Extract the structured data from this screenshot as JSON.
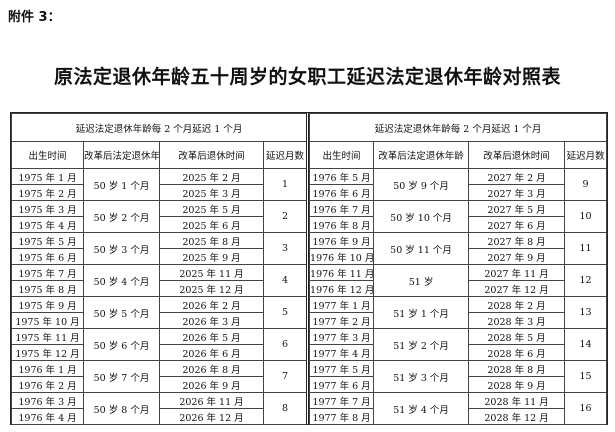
{
  "header": {
    "attachment": "附件 3：",
    "title": "原法定退休年龄五十周岁的女职工延迟法定退休年龄对照表"
  },
  "tables": [
    {
      "caption": "延迟法定退休年龄每 2 个月延迟 1 个月",
      "columns": [
        "出生时间",
        "改革后法定退休年龄",
        "改革后退休时间",
        "延迟月数"
      ],
      "groups": [
        {
          "birth": [
            "1975 年 1 月",
            "1975 年 2 月"
          ],
          "age": "50 岁 1 个月",
          "retire": [
            "2025 年 2 月",
            "2025 年 3 月"
          ],
          "delay": "1"
        },
        {
          "birth": [
            "1975 年 3 月",
            "1975 年 4 月"
          ],
          "age": "50 岁 2 个月",
          "retire": [
            "2025 年 5 月",
            "2025 年 6 月"
          ],
          "delay": "2"
        },
        {
          "birth": [
            "1975 年 5 月",
            "1975 年 6 月"
          ],
          "age": "50 岁 3 个月",
          "retire": [
            "2025 年 8 月",
            "2025 年 9 月"
          ],
          "delay": "3"
        },
        {
          "birth": [
            "1975 年 7 月",
            "1975 年 8 月"
          ],
          "age": "50 岁 4 个月",
          "retire": [
            "2025 年 11 月",
            "2025 年 12 月"
          ],
          "delay": "4"
        },
        {
          "birth": [
            "1975 年 9 月",
            "1975 年 10 月"
          ],
          "age": "50 岁 5 个月",
          "retire": [
            "2026 年 2 月",
            "2026 年 3 月"
          ],
          "delay": "5"
        },
        {
          "birth": [
            "1975 年 11 月",
            "1975 年 12 月"
          ],
          "age": "50 岁 6 个月",
          "retire": [
            "2026 年 5 月",
            "2026 年 6 月"
          ],
          "delay": "6"
        },
        {
          "birth": [
            "1976 年 1 月",
            "1976 年 2 月"
          ],
          "age": "50 岁 7 个月",
          "retire": [
            "2026 年 8 月",
            "2026 年 9 月"
          ],
          "delay": "7"
        },
        {
          "birth": [
            "1976 年 3 月",
            "1976 年 4 月"
          ],
          "age": "50 岁 8 个月",
          "retire": [
            "2026 年 11 月",
            "2026 年 12 月"
          ],
          "delay": "8"
        }
      ]
    },
    {
      "caption": "延迟法定退休年龄每 2 个月延迟 1 个月",
      "columns": [
        "出生时间",
        "改革后法定退休年龄",
        "改革后退休时间",
        "延迟月数"
      ],
      "groups": [
        {
          "birth": [
            "1976 年 5 月",
            "1976 年 6 月"
          ],
          "age": "50 岁 9 个月",
          "retire": [
            "2027 年 2 月",
            "2027 年 3 月"
          ],
          "delay": "9"
        },
        {
          "birth": [
            "1976 年 7 月",
            "1976 年 8 月"
          ],
          "age": "50 岁 10 个月",
          "retire": [
            "2027 年 5 月",
            "2027 年 6 月"
          ],
          "delay": "10"
        },
        {
          "birth": [
            "1976 年 9 月",
            "1976 年 10 月"
          ],
          "age": "50 岁 11 个月",
          "retire": [
            "2027 年 8 月",
            "2027 年 9 月"
          ],
          "delay": "11"
        },
        {
          "birth": [
            "1976 年 11 月",
            "1976 年 12 月"
          ],
          "age": "51 岁",
          "retire": [
            "2027 年 11 月",
            "2027 年 12 月"
          ],
          "delay": "12"
        },
        {
          "birth": [
            "1977 年 1 月",
            "1977 年 2 月"
          ],
          "age": "51 岁 1 个月",
          "retire": [
            "2028 年 2 月",
            "2028 年 3 月"
          ],
          "delay": "13"
        },
        {
          "birth": [
            "1977 年 3 月",
            "1977 年 4 月"
          ],
          "age": "51 岁 2 个月",
          "retire": [
            "2028 年 5 月",
            "2028 年 6 月"
          ],
          "delay": "14"
        },
        {
          "birth": [
            "1977 年 5 月",
            "1977 年 6 月"
          ],
          "age": "51 岁 3 个月",
          "retire": [
            "2028 年 8 月",
            "2028 年 9 月"
          ],
          "delay": "15"
        },
        {
          "birth": [
            "1977 年 7 月",
            "1977 年 8 月"
          ],
          "age": "51 岁 4 个月",
          "retire": [
            "2028 年 11 月",
            "2028 年 12 月"
          ],
          "delay": "16"
        }
      ]
    }
  ]
}
